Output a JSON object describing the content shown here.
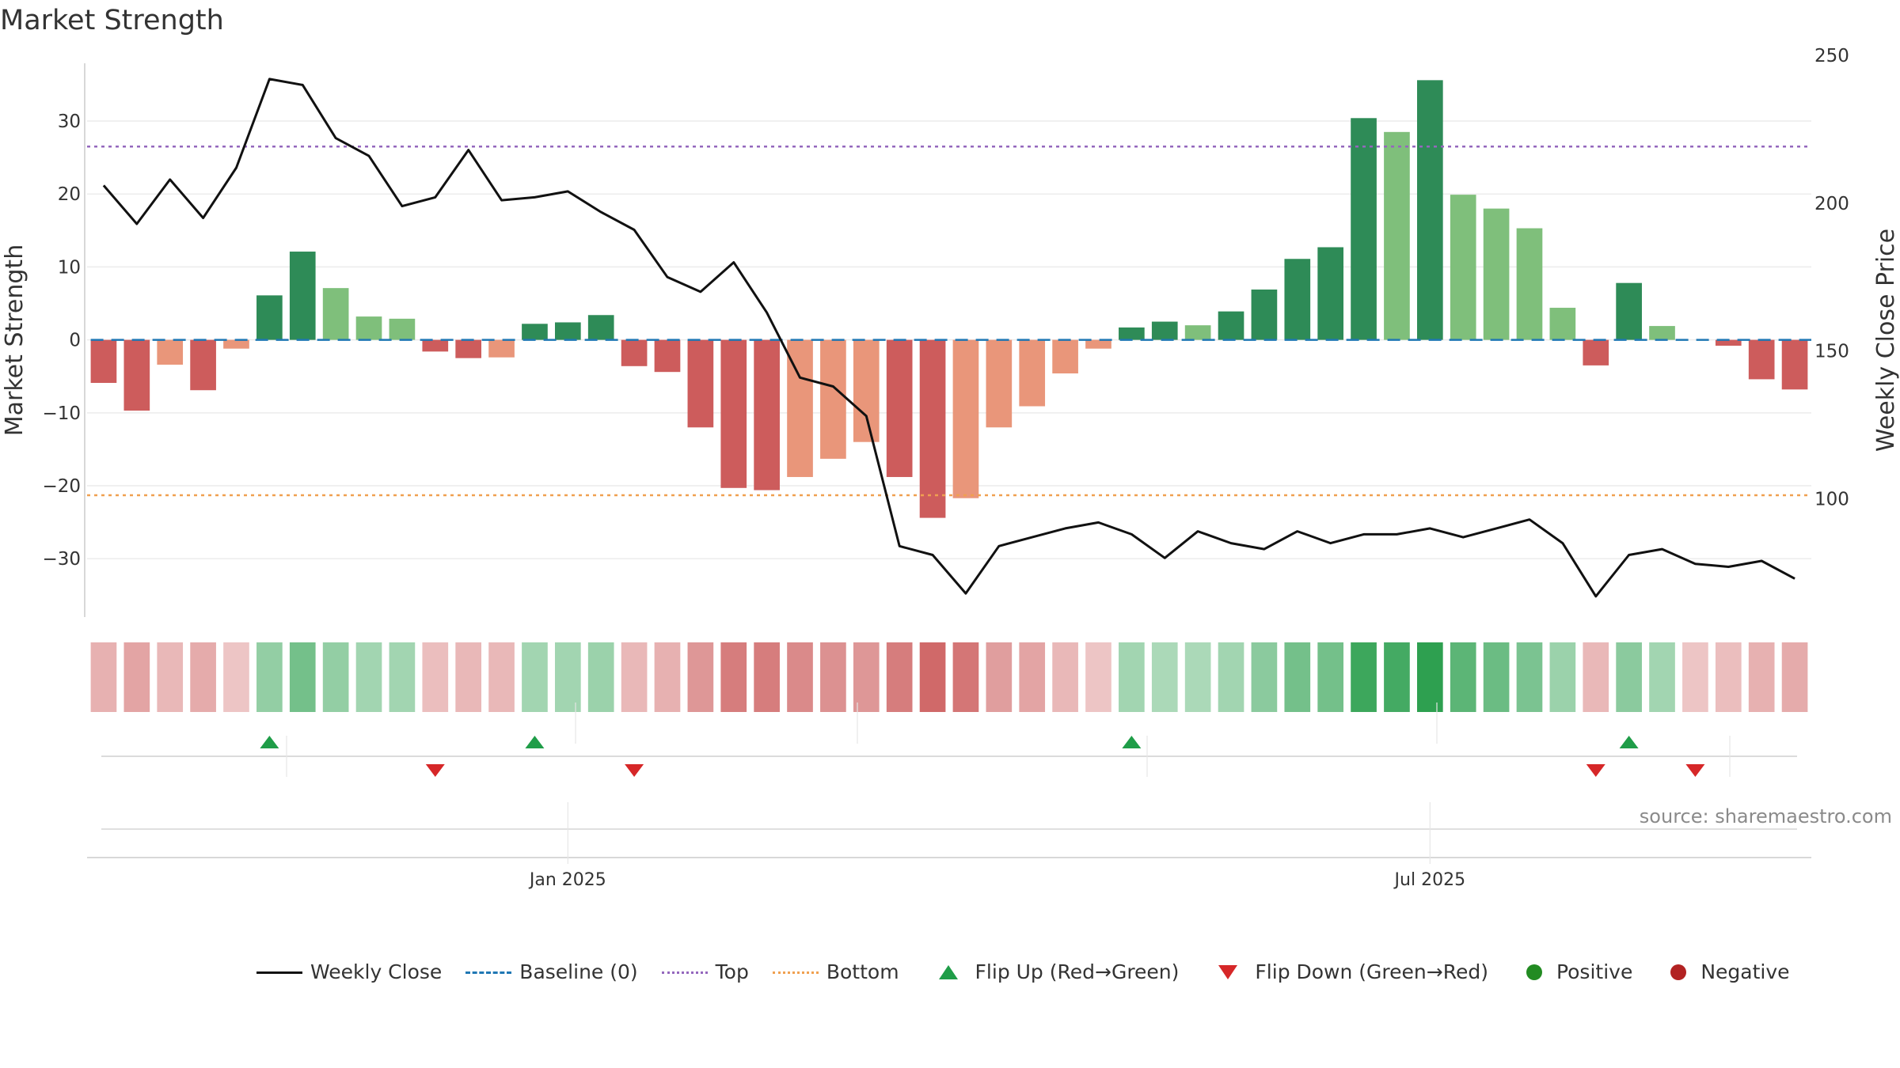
{
  "title": "Market Strength",
  "source": "source: sharemaestro.com",
  "colors": {
    "strong_pos": "#2e8b57",
    "weak_pos": "#7fbf7b",
    "strong_neg": "#cd5c5c",
    "weak_neg": "#e9967a",
    "close": "#111111",
    "baseline": "#1f77b4",
    "top": "#9467bd",
    "bottom": "#f0a050",
    "flip_up": "#1f9d48",
    "flip_down": "#d62728",
    "pos_dot": "#228b22",
    "neg_dot": "#b22222"
  },
  "chart_data": {
    "type": "bar",
    "title": "Market Strength",
    "ylabel": "Market Strength",
    "y2label": "Weekly Close Price",
    "ylim": [
      -38,
      39
    ],
    "y2lim": [
      60,
      250
    ],
    "yticks": [
      30,
      20,
      10,
      0,
      -10,
      -20,
      -30
    ],
    "ytick_labels": [
      "30",
      "20",
      "10",
      "0",
      "−10",
      "−20",
      "−30"
    ],
    "y2ticks": [
      250,
      200,
      150,
      100
    ],
    "y2tick_labels": [
      "250",
      "200",
      "150",
      "100"
    ],
    "x_labels": [
      {
        "week": 14.5,
        "label": "Jan 2025"
      },
      {
        "week": 40.5,
        "label": "Jul 2025"
      }
    ],
    "weeks": 52,
    "strength": [
      -5.9,
      -9.7,
      -3.4,
      -6.9,
      -1.2,
      6.1,
      12.1,
      7.1,
      3.2,
      2.9,
      -1.6,
      -2.5,
      -2.4,
      2.2,
      2.4,
      3.4,
      -3.6,
      -4.4,
      -12.0,
      -20.3,
      -20.6,
      -18.8,
      -16.3,
      -14.0,
      -18.8,
      -24.4,
      -21.7,
      -12.0,
      -9.1,
      -4.6,
      -1.2,
      1.7,
      2.5,
      2.0,
      3.9,
      6.9,
      11.1,
      12.7,
      30.4,
      28.5,
      35.6,
      19.9,
      18.0,
      15.3,
      4.4,
      -3.5,
      7.8,
      1.9,
      0.0,
      -0.8,
      -5.4,
      -6.8
    ],
    "strong": [
      1,
      1,
      0,
      1,
      0,
      1,
      1,
      0,
      0,
      0,
      1,
      1,
      0,
      1,
      1,
      1,
      1,
      1,
      1,
      1,
      1,
      0,
      0,
      0,
      1,
      1,
      0,
      0,
      0,
      0,
      0,
      1,
      1,
      0,
      1,
      1,
      1,
      1,
      1,
      0,
      1,
      0,
      0,
      0,
      0,
      1,
      1,
      0,
      0,
      1,
      1,
      1
    ],
    "close": [
      206,
      193,
      208,
      195,
      212,
      242,
      240,
      222,
      216,
      199,
      202,
      218,
      201,
      202,
      204,
      197,
      191,
      175,
      170,
      180,
      163,
      141,
      138,
      128,
      84,
      81,
      68,
      84,
      87,
      90,
      92,
      88,
      80,
      89,
      85,
      83,
      89,
      85,
      88,
      88,
      90,
      87,
      90,
      93,
      85,
      67,
      81,
      83,
      78,
      77,
      79,
      73
    ],
    "top": 26.5,
    "bottom": -21.3,
    "flip_up": [
      5,
      13,
      31,
      46
    ],
    "flip_down": [
      10,
      16,
      45,
      48
    ],
    "heat": [
      -0.35,
      -0.45,
      -0.3,
      -0.4,
      -0.2,
      0.45,
      0.65,
      0.45,
      0.35,
      0.35,
      -0.25,
      -0.3,
      -0.3,
      0.35,
      0.35,
      0.4,
      -0.3,
      -0.35,
      -0.55,
      -0.75,
      -0.75,
      -0.65,
      -0.6,
      -0.55,
      -0.75,
      -0.9,
      -0.8,
      -0.5,
      -0.45,
      -0.3,
      -0.2,
      0.35,
      0.3,
      0.3,
      0.35,
      0.5,
      0.65,
      0.65,
      1.0,
      0.95,
      1.1,
      0.8,
      0.7,
      0.6,
      0.4,
      -0.3,
      0.5,
      0.35,
      -0.2,
      -0.25,
      -0.35,
      -0.4
    ]
  },
  "legend": {
    "weekly_close": "Weekly Close",
    "baseline": "Baseline (0)",
    "top": "Top",
    "bottom": "Bottom",
    "flip_up": "Flip Up (Red→Green)",
    "flip_down": "Flip Down (Green→Red)",
    "positive": "Positive",
    "negative": "Negative"
  }
}
